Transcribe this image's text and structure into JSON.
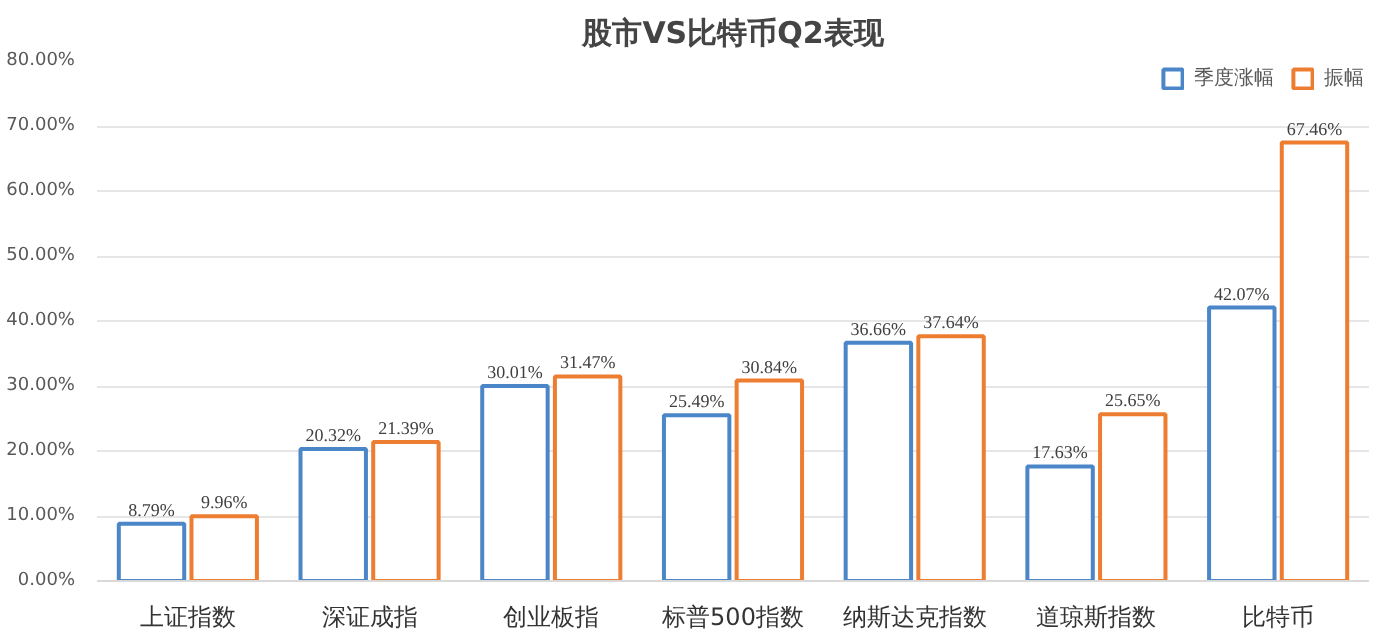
{
  "chart_data": {
    "type": "bar",
    "title": "股市VS比特币Q2表现",
    "categories": [
      "上证指数",
      "深证成指",
      "创业板指",
      "标普500指数",
      "纳斯达克指数",
      "道琼斯指数",
      "比特币"
    ],
    "series": [
      {
        "name": "季度涨幅",
        "color": "#4a86c8",
        "values": [
          8.79,
          20.32,
          30.01,
          25.49,
          36.66,
          17.63,
          42.07
        ],
        "value_labels": [
          "8.79%",
          "20.32%",
          "30.01%",
          "25.49%",
          "36.66%",
          "17.63%",
          "42.07%"
        ]
      },
      {
        "name": "振幅",
        "color": "#ed7d31",
        "values": [
          9.96,
          21.39,
          31.47,
          30.84,
          37.64,
          25.65,
          67.46
        ],
        "value_labels": [
          "9.96%",
          "21.39%",
          "31.47%",
          "30.84%",
          "37.64%",
          "25.65%",
          "67.46%"
        ]
      }
    ],
    "ylim": [
      0,
      80
    ],
    "yticks": [
      {
        "value": 0,
        "label": "0.00%"
      },
      {
        "value": 10,
        "label": "10.00%"
      },
      {
        "value": 20,
        "label": "20.00%"
      },
      {
        "value": 30,
        "label": "30.00%"
      },
      {
        "value": 40,
        "label": "40.00%"
      },
      {
        "value": 50,
        "label": "50.00%"
      },
      {
        "value": 60,
        "label": "60.00%"
      },
      {
        "value": 70,
        "label": "70.00%"
      },
      {
        "value": 80,
        "label": "80.00%"
      }
    ],
    "grid": "y",
    "legend": "top right"
  }
}
